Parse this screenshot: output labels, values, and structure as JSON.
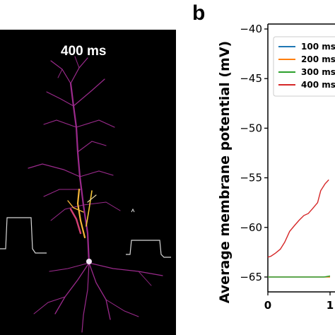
{
  "panel_a": {
    "time_label": "400 ms",
    "colors": {
      "background": "#000000",
      "dendrite": "#9b2a8c",
      "dendrite_bright": "#d23f73",
      "active": "#f5b53a",
      "trace": "#d8d8d8"
    }
  },
  "panel_b": {
    "letter": "b"
  },
  "chart_data": {
    "type": "line",
    "title": "",
    "xlabel": "",
    "ylabel": "Average membrane potential (mV)",
    "ylim": [
      -66.5,
      -39.5
    ],
    "yticks": [
      -40,
      -45,
      -50,
      -55,
      -60,
      -65
    ],
    "ytick_labels": [
      "−40",
      "−45",
      "−50",
      "−55",
      "−60",
      "−65"
    ],
    "xticks_visible": [
      "0",
      "1"
    ],
    "grid": false,
    "legend": "top-right",
    "series": [
      {
        "name": "100 ms",
        "color": "#1f77b4",
        "x": [
          0,
          0.1,
          0.2,
          0.3,
          0.4,
          0.5,
          0.6,
          0.7,
          0.8,
          0.9,
          1.0
        ],
        "y": [
          -65,
          -65,
          -65,
          -65,
          -65,
          -65,
          -65,
          -65,
          -65,
          -65,
          -65
        ]
      },
      {
        "name": "200 ms",
        "color": "#ff7f0e",
        "x": [
          0,
          0.1,
          0.2,
          0.3,
          0.4,
          0.5,
          0.6,
          0.7,
          0.8,
          0.9,
          1.0
        ],
        "y": [
          -65,
          -65,
          -65,
          -65,
          -65,
          -65,
          -65,
          -65,
          -65,
          -65,
          -65
        ]
      },
      {
        "name": "300 ms",
        "color": "#2ca02c",
        "x": [
          0,
          0.1,
          0.2,
          0.3,
          0.4,
          0.5,
          0.6,
          0.7,
          0.8,
          0.9,
          1.0
        ],
        "y": [
          -65,
          -65,
          -65,
          -65,
          -65,
          -65,
          -65,
          -65,
          -65,
          -65,
          -64.9
        ]
      },
      {
        "name": "400 ms",
        "color": "#d62728",
        "x": [
          0,
          0.05,
          0.12,
          0.2,
          0.27,
          0.35,
          0.43,
          0.5,
          0.58,
          0.65,
          0.72,
          0.8,
          0.85,
          0.92,
          0.98
        ],
        "y": [
          -63,
          -62.9,
          -62.6,
          -62.2,
          -61.5,
          -60.4,
          -59.8,
          -59.3,
          -58.8,
          -58.6,
          -58.1,
          -57.5,
          -56.3,
          -55.6,
          -55.2
        ]
      }
    ]
  }
}
